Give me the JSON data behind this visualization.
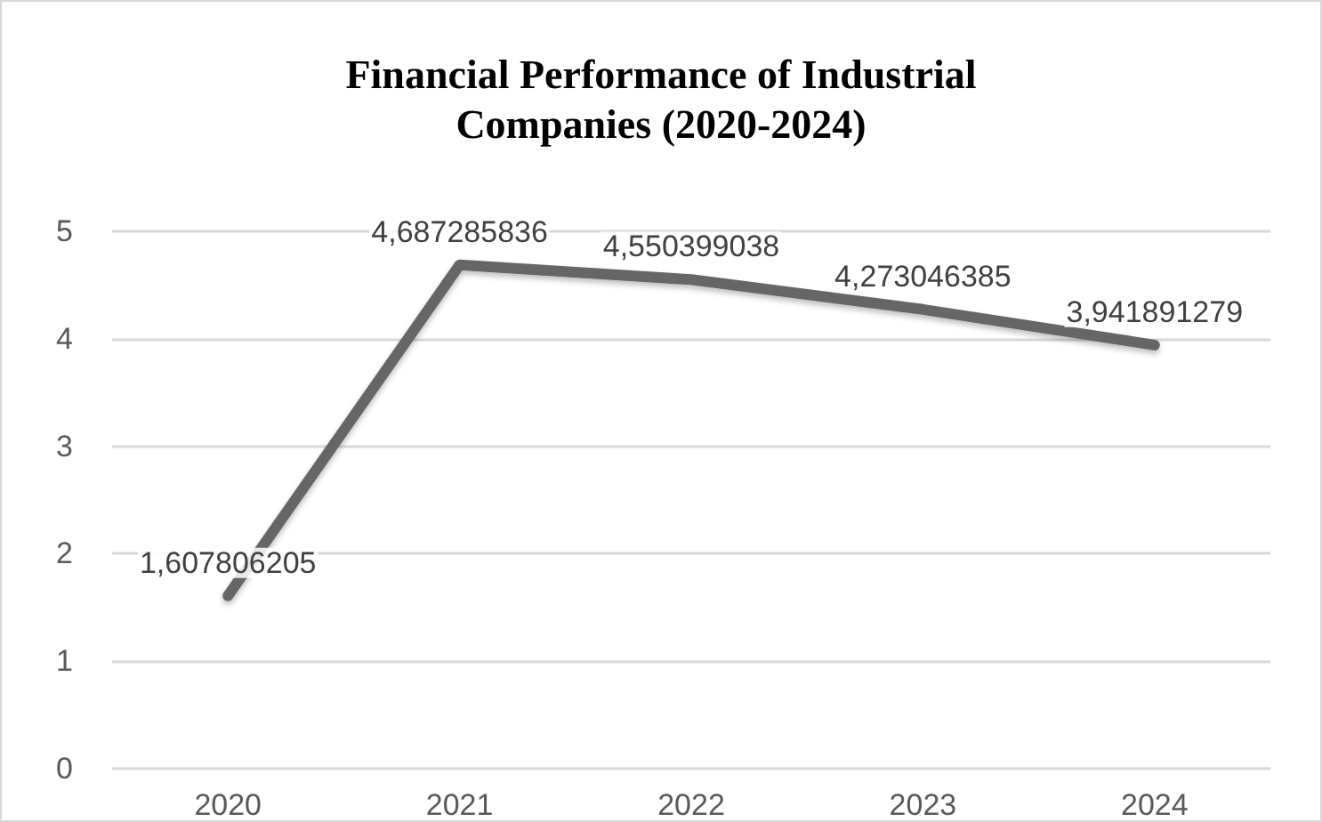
{
  "chart_data": {
    "type": "line",
    "title": "Financial Performance of Industrial\nCompanies (2020-2024)",
    "categories": [
      "2020",
      "2021",
      "2022",
      "2023",
      "2024"
    ],
    "series": [
      {
        "color": "#666666",
        "values": [
          1.607806205,
          4.687285836,
          4.550399038,
          4.273046385,
          3.941891279
        ],
        "value_labels": [
          "1,607806205",
          "4,687285836",
          "4,550399038",
          "4,273046385",
          "3,941891279"
        ]
      }
    ],
    "ylim": [
      0,
      5
    ],
    "yticks": [
      0,
      1,
      2,
      3,
      4,
      5
    ],
    "grid": "y",
    "marker": "none",
    "line_style": "solid"
  }
}
